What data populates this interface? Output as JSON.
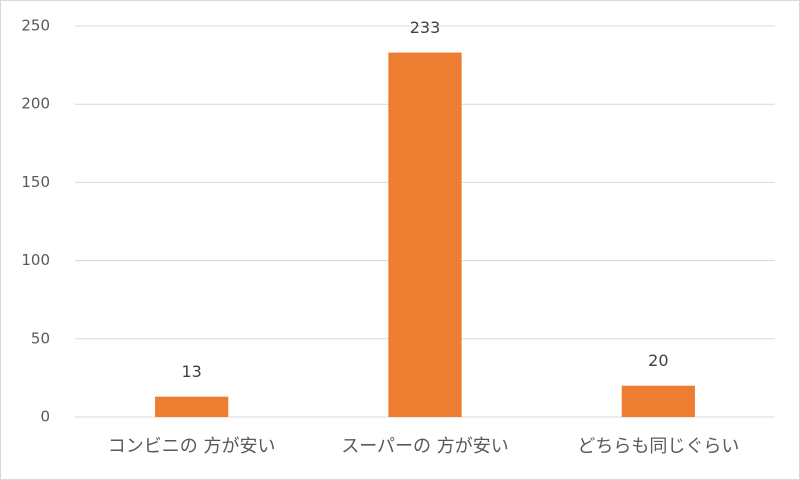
{
  "chart_data": {
    "type": "bar",
    "categories": [
      "コンビニの 方が安い",
      "スーパーの 方が安い",
      "どちらも同じぐらい"
    ],
    "values": [
      13,
      233,
      20
    ],
    "color": "#ed7d31",
    "ylim": [
      0,
      250
    ],
    "yticks": [
      0,
      50,
      100,
      150,
      200,
      250
    ],
    "grid": true,
    "data_labels": true
  }
}
